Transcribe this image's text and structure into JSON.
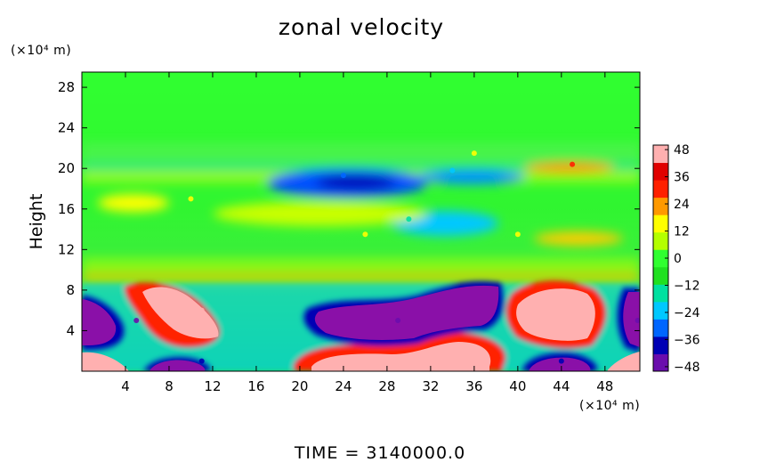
{
  "chart_data": {
    "type": "heatmap",
    "title": "zonal velocity",
    "ylabel": "Height",
    "x_unit": "(×10⁴ m)",
    "y_unit": "(×10⁴ m)",
    "x_ticks": [
      4,
      8,
      12,
      16,
      20,
      24,
      28,
      32,
      36,
      40,
      44,
      48
    ],
    "y_ticks": [
      4,
      8,
      12,
      16,
      20,
      24,
      28
    ],
    "xlim": [
      0,
      51.2
    ],
    "ylim": [
      0,
      29.5
    ],
    "colorbar": {
      "ticks": [
        48,
        36,
        24,
        12,
        0,
        -12,
        -24,
        -36,
        -48
      ],
      "range": [
        -50,
        50
      ],
      "colors": [
        "#6a0dad",
        "#0000b4",
        "#0066ff",
        "#00c8ff",
        "#00e0a0",
        "#20e020",
        "#30ff30",
        "#b4ff00",
        "#ffff00",
        "#ff9900",
        "#ff2000",
        "#e00000",
        "#ffb0b0"
      ]
    },
    "features": [
      {
        "x": 5,
        "y": 5,
        "value": -48
      },
      {
        "x": 0,
        "y": 1,
        "value": 48
      },
      {
        "x": 11,
        "y": 6,
        "value": 48
      },
      {
        "x": 11,
        "y": 1,
        "value": -40
      },
      {
        "x": 29,
        "y": 5,
        "value": -48
      },
      {
        "x": 30,
        "y": 1,
        "value": 48
      },
      {
        "x": 44,
        "y": 6,
        "value": 48
      },
      {
        "x": 44,
        "y": 1,
        "value": -40
      },
      {
        "x": 51,
        "y": 5,
        "value": -48
      },
      {
        "x": 51,
        "y": 1,
        "value": 48
      },
      {
        "x": 24,
        "y": 19.3,
        "value": -30
      },
      {
        "x": 34,
        "y": 19.8,
        "value": -20
      },
      {
        "x": 30,
        "y": 15,
        "value": -15
      },
      {
        "x": 10,
        "y": 17,
        "value": 14
      },
      {
        "x": 36,
        "y": 21.5,
        "value": 14
      },
      {
        "x": 45,
        "y": 20.4,
        "value": 30
      },
      {
        "x": 26,
        "y": 13.5,
        "value": 12
      },
      {
        "x": 40,
        "y": 13.5,
        "value": 12
      }
    ]
  },
  "footer": {
    "time_text": "TIME  =  3140000.0"
  }
}
